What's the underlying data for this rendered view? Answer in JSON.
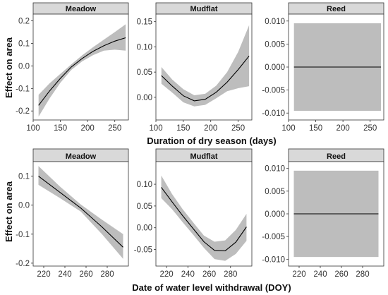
{
  "figure": {
    "row_xlabels": [
      "Duration of dry season (days)",
      "Date of water level withdrawal (DOY)"
    ],
    "ylabel": "Effect on area"
  },
  "chart_data": [
    {
      "type": "line",
      "panel": "Meadow",
      "row": 0,
      "col": 0,
      "title": "Meadow",
      "xlim": [
        100,
        275
      ],
      "ylim": [
        -0.24,
        0.23
      ],
      "xticks": [
        100,
        150,
        200,
        250
      ],
      "yticks": [
        -0.2,
        -0.1,
        0.0,
        0.1,
        0.2
      ],
      "ytick_labels": [
        "-0.2",
        "-0.1",
        "0.0",
        "0.1",
        "0.2"
      ],
      "x": [
        110,
        130,
        150,
        170,
        190,
        210,
        230,
        250,
        270
      ],
      "fit": [
        -0.175,
        -0.112,
        -0.055,
        -0.005,
        0.033,
        0.065,
        0.09,
        0.11,
        0.125
      ],
      "lower": [
        -0.225,
        -0.145,
        -0.075,
        -0.018,
        0.02,
        0.048,
        0.068,
        0.072,
        0.068
      ],
      "upper": [
        -0.128,
        -0.078,
        -0.035,
        0.007,
        0.047,
        0.083,
        0.117,
        0.15,
        0.185
      ]
    },
    {
      "type": "line",
      "panel": "Mudflat",
      "row": 0,
      "col": 1,
      "title": "Mudflat",
      "xlim": [
        100,
        275
      ],
      "ylim": [
        -0.045,
        0.165
      ],
      "xticks": [
        100,
        150,
        200,
        250
      ],
      "yticks": [
        0.0,
        0.05,
        0.1,
        0.15
      ],
      "ytick_labels": [
        "0.00",
        "0.05",
        "0.10",
        "0.15"
      ],
      "x": [
        110,
        130,
        150,
        170,
        190,
        210,
        230,
        250,
        270
      ],
      "fit": [
        0.043,
        0.022,
        0.003,
        -0.007,
        -0.004,
        0.01,
        0.03,
        0.055,
        0.082
      ],
      "lower": [
        0.027,
        0.009,
        -0.01,
        -0.018,
        -0.015,
        -0.002,
        0.012,
        0.018,
        0.022
      ],
      "upper": [
        0.06,
        0.035,
        0.016,
        0.004,
        0.007,
        0.023,
        0.05,
        0.09,
        0.143
      ]
    },
    {
      "type": "line",
      "panel": "Reed",
      "row": 0,
      "col": 2,
      "title": "Reed",
      "xlim": [
        100,
        275
      ],
      "ylim": [
        -0.0115,
        0.0115
      ],
      "xticks": [
        100,
        150,
        200,
        250
      ],
      "yticks": [
        -0.01,
        -0.005,
        0.0,
        0.005,
        0.01
      ],
      "ytick_labels": [
        "-0.010",
        "-0.005",
        "0.000",
        "0.005",
        "0.010"
      ],
      "x": [
        110,
        270
      ],
      "fit": [
        0.0,
        0.0
      ],
      "lower": [
        -0.0095,
        -0.0095
      ],
      "upper": [
        0.0095,
        0.0095
      ]
    },
    {
      "type": "line",
      "panel": "Meadow",
      "row": 1,
      "col": 0,
      "title": "Meadow",
      "xlim": [
        210,
        300
      ],
      "ylim": [
        -0.21,
        0.15
      ],
      "xticks": [
        220,
        240,
        260,
        280
      ],
      "yticks": [
        -0.2,
        -0.1,
        0.0,
        0.1
      ],
      "ytick_labels": [
        "-0.2",
        "-0.1",
        "0.0",
        "0.1"
      ],
      "x": [
        215,
        235,
        255,
        275,
        295
      ],
      "fit": [
        0.1,
        0.045,
        -0.01,
        -0.075,
        -0.145
      ],
      "lower": [
        0.07,
        0.025,
        -0.022,
        -0.1,
        -0.185
      ],
      "upper": [
        0.135,
        0.065,
        0.002,
        -0.05,
        -0.1
      ]
    },
    {
      "type": "line",
      "panel": "Mudflat",
      "row": 1,
      "col": 1,
      "title": "Mudflat",
      "xlim": [
        210,
        300
      ],
      "ylim": [
        -0.088,
        0.152
      ],
      "xticks": [
        220,
        240,
        260,
        280
      ],
      "yticks": [
        -0.05,
        0.0,
        0.05,
        0.1
      ],
      "ytick_labels": [
        "-0.05",
        "0.00",
        "0.05",
        "0.10"
      ],
      "x": [
        215,
        225,
        235,
        245,
        255,
        265,
        275,
        285,
        295
      ],
      "fit": [
        0.093,
        0.06,
        0.028,
        -0.002,
        -0.032,
        -0.052,
        -0.053,
        -0.033,
        0.002
      ],
      "lower": [
        0.068,
        0.043,
        0.013,
        -0.016,
        -0.046,
        -0.072,
        -0.076,
        -0.06,
        -0.03
      ],
      "upper": [
        0.12,
        0.078,
        0.043,
        0.012,
        -0.018,
        -0.032,
        -0.029,
        -0.005,
        0.032
      ]
    },
    {
      "type": "line",
      "panel": "Reed",
      "row": 1,
      "col": 2,
      "title": "Reed",
      "xlim": [
        210,
        300
      ],
      "ylim": [
        -0.0115,
        0.0115
      ],
      "xticks": [
        220,
        240,
        260,
        280
      ],
      "yticks": [
        -0.01,
        -0.005,
        0.0,
        0.005,
        0.01
      ],
      "ytick_labels": [
        "-0.010",
        "-0.005",
        "0.000",
        "0.005",
        "0.010"
      ],
      "x": [
        215,
        295
      ],
      "fit": [
        0.0,
        0.0
      ],
      "lower": [
        -0.0095,
        -0.0095
      ],
      "upper": [
        0.0095,
        0.0095
      ]
    }
  ]
}
